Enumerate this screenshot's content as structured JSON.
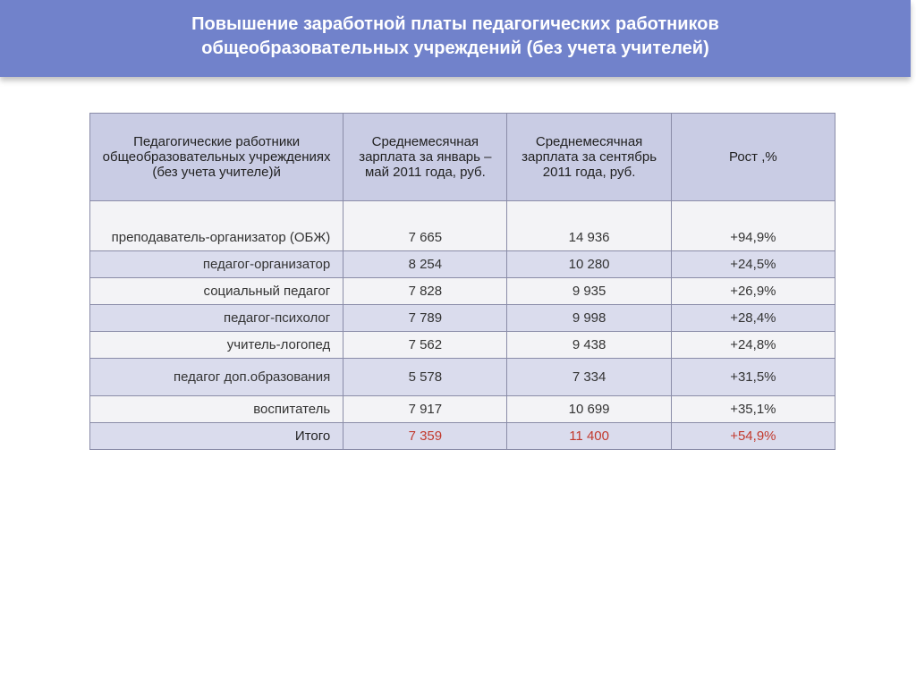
{
  "title_line1": "Повышение заработной платы педагогических работников",
  "title_line2": "общеобразовательных учреждений (без учета учителей)",
  "table": {
    "columns": [
      "Педагогические работники общеобразовательных учреждениях (без учета учителе)й",
      "Среднемесячная зарплата  за январь – май 2011 года, руб.",
      "Среднемесячная зарплата за сентябрь\n2011 года, руб.",
      "Рост ,%"
    ],
    "rows": [
      {
        "role": "преподаватель-организатор (ОБЖ)",
        "may": "7 665",
        "sept": "14 936",
        "growth": "+94,9%",
        "tall": true
      },
      {
        "role": "педагог-организатор",
        "may": "8 254",
        "sept": "10 280",
        "growth": "+24,5%"
      },
      {
        "role": "социальный педагог",
        "may": "7 828",
        "sept": "9 935",
        "growth": "+26,9%"
      },
      {
        "role": "педагог-психолог",
        "may": "7 789",
        "sept": "9 998",
        "growth": "+28,4%"
      },
      {
        "role": "учитель-логопед",
        "may": "7 562",
        "sept": "9 438",
        "growth": "+24,8%"
      },
      {
        "role": "педагог доп.образования",
        "may": "5 578",
        "sept": "7 334",
        "growth": "+31,5%",
        "tall_half": true
      },
      {
        "role": "воспитатель",
        "may": "7 917",
        "sept": "10 699",
        "growth": "+35,1%"
      }
    ],
    "total": {
      "role": "Итого",
      "may": "7 359",
      "sept": "11 400",
      "growth": "+54,9%"
    }
  },
  "colors": {
    "title_bg": "#7182cb",
    "title_text": "#ffffff",
    "header_bg": "#c9cce4",
    "row_odd_bg": "#f3f3f6",
    "row_even_bg": "#dadced",
    "border": "#8a8ca8",
    "total_text": "#c23a2e"
  }
}
